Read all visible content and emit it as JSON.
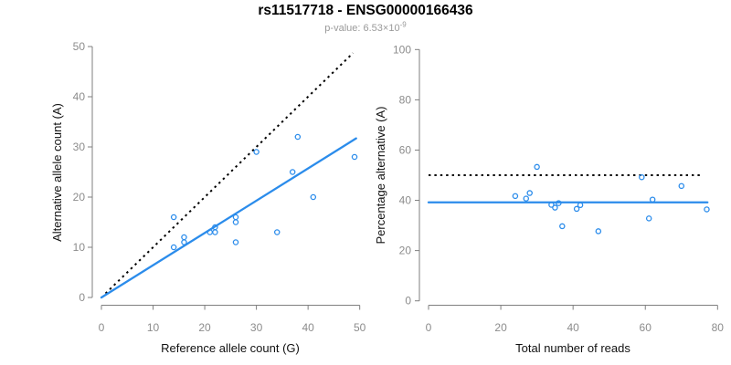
{
  "header": {
    "title": "rs11517718 - ENSG00000166436",
    "pvalue_label": "p-value: ",
    "pvalue_base": "6.53×10",
    "pvalue_exponent": "-9"
  },
  "colors": {
    "accent_blue": "#2b8ceb",
    "dotted_black": "#000000",
    "axis_gray": "#7f7f7f",
    "tick_label_gray": "#8c8c8c",
    "axis_title_color": "#111111",
    "subtitle_gray": "#9a9a9a"
  },
  "chart_data": [
    {
      "type": "scatter",
      "title": "rs11517718 - ENSG00000166436",
      "subtitle": "p-value: 6.53×10^-9",
      "xlabel": "Reference allele count (G)",
      "ylabel": "Alternative allele count (A)",
      "xlim": [
        0,
        50
      ],
      "ylim": [
        0,
        50
      ],
      "xticks": [
        0,
        10,
        20,
        30,
        40,
        50
      ],
      "yticks": [
        0,
        10,
        20,
        30,
        40,
        50
      ],
      "grid": false,
      "points": [
        [
          14,
          16
        ],
        [
          14,
          10
        ],
        [
          16,
          12
        ],
        [
          16,
          11
        ],
        [
          21,
          13
        ],
        [
          22,
          13
        ],
        [
          22,
          14
        ],
        [
          26,
          16
        ],
        [
          26,
          15
        ],
        [
          26,
          11
        ],
        [
          30,
          29
        ],
        [
          34,
          13
        ],
        [
          37,
          25
        ],
        [
          38,
          32
        ],
        [
          41,
          20
        ],
        [
          49,
          28
        ]
      ],
      "lines": [
        {
          "name": "identity-line",
          "style": "dotted",
          "color": "black",
          "x1": 0.8,
          "y1": 0.8,
          "x2": 48.7,
          "y2": 48.7
        },
        {
          "name": "fit-line",
          "style": "solid",
          "color": "blue",
          "x1": 0,
          "y1": 0,
          "x2": 49.3,
          "y2": 31.7
        }
      ]
    },
    {
      "type": "scatter",
      "xlabel": "Total number of reads",
      "ylabel": "Percentage alternative (A)",
      "xlim": [
        0,
        80
      ],
      "ylim": [
        0,
        100
      ],
      "xticks": [
        0,
        20,
        40,
        60,
        80
      ],
      "yticks": [
        0,
        20,
        40,
        60,
        80,
        100
      ],
      "grid": false,
      "points": [
        [
          30,
          53.3
        ],
        [
          24,
          41.7
        ],
        [
          28,
          42.9
        ],
        [
          27,
          40.7
        ],
        [
          34,
          38.2
        ],
        [
          35,
          37.1
        ],
        [
          36,
          38.9
        ],
        [
          42,
          38.1
        ],
        [
          41,
          36.6
        ],
        [
          37,
          29.7
        ],
        [
          59,
          49.2
        ],
        [
          47,
          27.7
        ],
        [
          62,
          40.3
        ],
        [
          70,
          45.7
        ],
        [
          61,
          32.8
        ],
        [
          77,
          36.4
        ]
      ],
      "lines": [
        {
          "name": "expected-50pct-line",
          "style": "dotted",
          "color": "black",
          "x1": 0,
          "y1": 50,
          "x2": 75.5,
          "y2": 50
        },
        {
          "name": "observed-pct-line",
          "style": "solid",
          "color": "blue",
          "x1": 0,
          "y1": 39.2,
          "x2": 77.2,
          "y2": 39.2
        }
      ]
    }
  ]
}
